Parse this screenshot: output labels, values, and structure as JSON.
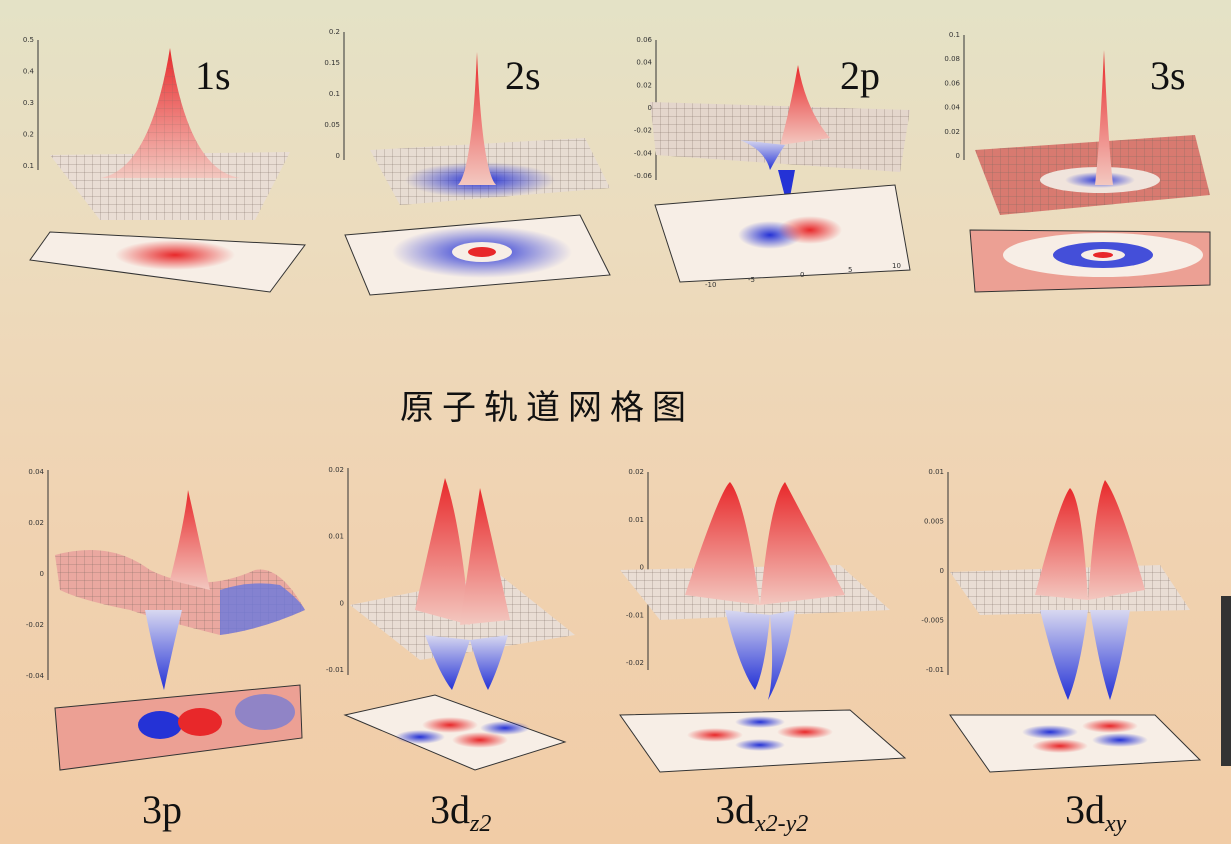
{
  "title": "原子轨道网格图",
  "colors": {
    "positive": "#e8282a",
    "negative": "#2432d6",
    "mesh": "#c8b8a8"
  },
  "orbitals": [
    {
      "id": "1s",
      "label": "1s",
      "sub": "",
      "ticks": [
        "0.5",
        "0.4",
        "0.3",
        "0.2",
        "0.1"
      ]
    },
    {
      "id": "2s",
      "label": "2s",
      "sub": "",
      "ticks": [
        "0.2",
        "0.15",
        "0.1",
        "0.05",
        "0"
      ]
    },
    {
      "id": "2p",
      "label": "2p",
      "sub": "",
      "ticks": [
        "0.06",
        "0.04",
        "0.02",
        "0",
        "-0.02",
        "-0.04",
        "-0.06"
      ],
      "xticks": [
        "-10",
        "-5",
        "0",
        "5",
        "10"
      ]
    },
    {
      "id": "3s",
      "label": "3s",
      "sub": "",
      "ticks": [
        "0.1",
        "0.08",
        "0.06",
        "0.04",
        "0.02",
        "0"
      ]
    },
    {
      "id": "3p",
      "label": "3p",
      "sub": "",
      "ticks": [
        "0.04",
        "0.02",
        "0",
        "-0.02",
        "-0.04"
      ]
    },
    {
      "id": "3dz2",
      "label": "3d",
      "sub": "z2",
      "ticks": [
        "0.02",
        "0.01",
        "0",
        "-0.01"
      ]
    },
    {
      "id": "3dx2y2",
      "label": "3d",
      "sub": "x2-y2",
      "ticks": [
        "0.02",
        "0.01",
        "0",
        "-0.01",
        "-0.02"
      ]
    },
    {
      "id": "3dxy",
      "label": "3d",
      "sub": "xy",
      "ticks": [
        "0.01",
        "0.005",
        "0",
        "-0.005",
        "-0.01"
      ]
    }
  ]
}
